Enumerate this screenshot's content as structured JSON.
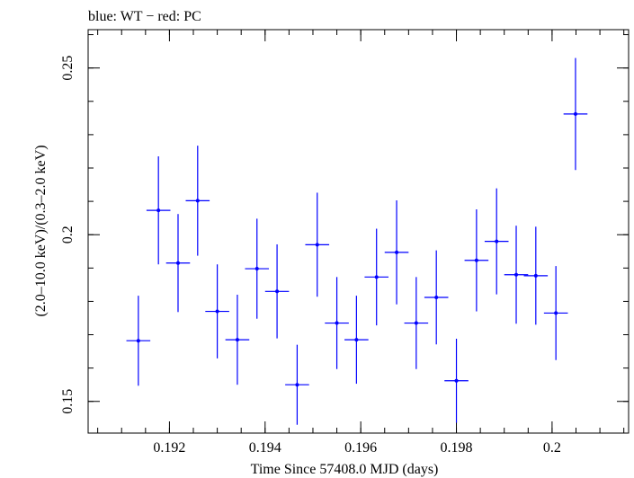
{
  "chart_data": {
    "type": "scatter",
    "title": "blue: WT − red: PC",
    "xlabel": "Time Since 57408.0 MJD (days)",
    "ylabel": "(2.0–10.0 keV)/(0.3–2.0 keV)",
    "xlim": [
      0.1903,
      0.2016
    ],
    "ylim": [
      0.1405,
      0.2615
    ],
    "x_ticks": [
      {
        "value": 0.192,
        "label": "0.192"
      },
      {
        "value": 0.194,
        "label": "0.194"
      },
      {
        "value": 0.196,
        "label": "0.196"
      },
      {
        "value": 0.198,
        "label": "0.198"
      },
      {
        "value": 0.2,
        "label": "0.2"
      }
    ],
    "y_ticks": [
      {
        "value": 0.15,
        "label": "0.15"
      },
      {
        "value": 0.2,
        "label": "0.2"
      },
      {
        "value": 0.25,
        "label": "0.25"
      }
    ],
    "x_minor_step": 0.0005,
    "y_minor_step": 0.01,
    "grid": false,
    "series": [
      {
        "color": "#0000ff",
        "points": [
          {
            "x": 0.19135,
            "y": 0.1682,
            "xerr": 0.00025,
            "yerr": 0.0135
          },
          {
            "x": 0.19177,
            "y": 0.2073,
            "xerr": 0.00025,
            "yerr": 0.0162
          },
          {
            "x": 0.19218,
            "y": 0.1915,
            "xerr": 0.00025,
            "yerr": 0.0147
          },
          {
            "x": 0.19259,
            "y": 0.2102,
            "xerr": 0.00025,
            "yerr": 0.0165
          },
          {
            "x": 0.193,
            "y": 0.177,
            "xerr": 0.00025,
            "yerr": 0.0141
          },
          {
            "x": 0.19342,
            "y": 0.1685,
            "xerr": 0.00025,
            "yerr": 0.0135
          },
          {
            "x": 0.19383,
            "y": 0.1898,
            "xerr": 0.00025,
            "yerr": 0.015
          },
          {
            "x": 0.19425,
            "y": 0.183,
            "xerr": 0.00025,
            "yerr": 0.0141
          },
          {
            "x": 0.19467,
            "y": 0.155,
            "xerr": 0.00025,
            "yerr": 0.012
          },
          {
            "x": 0.19509,
            "y": 0.197,
            "xerr": 0.00025,
            "yerr": 0.0156
          },
          {
            "x": 0.1955,
            "y": 0.1735,
            "xerr": 0.00025,
            "yerr": 0.0138
          },
          {
            "x": 0.19591,
            "y": 0.1685,
            "xerr": 0.00025,
            "yerr": 0.0132
          },
          {
            "x": 0.19633,
            "y": 0.1873,
            "xerr": 0.00025,
            "yerr": 0.0145
          },
          {
            "x": 0.19675,
            "y": 0.1947,
            "xerr": 0.00025,
            "yerr": 0.0156
          },
          {
            "x": 0.19716,
            "y": 0.1735,
            "xerr": 0.00025,
            "yerr": 0.0138
          },
          {
            "x": 0.19758,
            "y": 0.1812,
            "xerr": 0.00025,
            "yerr": 0.0141
          },
          {
            "x": 0.198,
            "y": 0.1562,
            "xerr": 0.00025,
            "yerr": 0.0126
          },
          {
            "x": 0.19842,
            "y": 0.1923,
            "xerr": 0.00025,
            "yerr": 0.0153
          },
          {
            "x": 0.19884,
            "y": 0.198,
            "xerr": 0.00025,
            "yerr": 0.0159
          },
          {
            "x": 0.19925,
            "y": 0.188,
            "xerr": 0.00025,
            "yerr": 0.0147
          },
          {
            "x": 0.19966,
            "y": 0.1877,
            "xerr": 0.00025,
            "yerr": 0.0147
          },
          {
            "x": 0.20008,
            "y": 0.1765,
            "xerr": 0.00025,
            "yerr": 0.0141
          },
          {
            "x": 0.20049,
            "y": 0.2362,
            "xerr": 0.00025,
            "yerr": 0.0168
          }
        ]
      }
    ]
  }
}
